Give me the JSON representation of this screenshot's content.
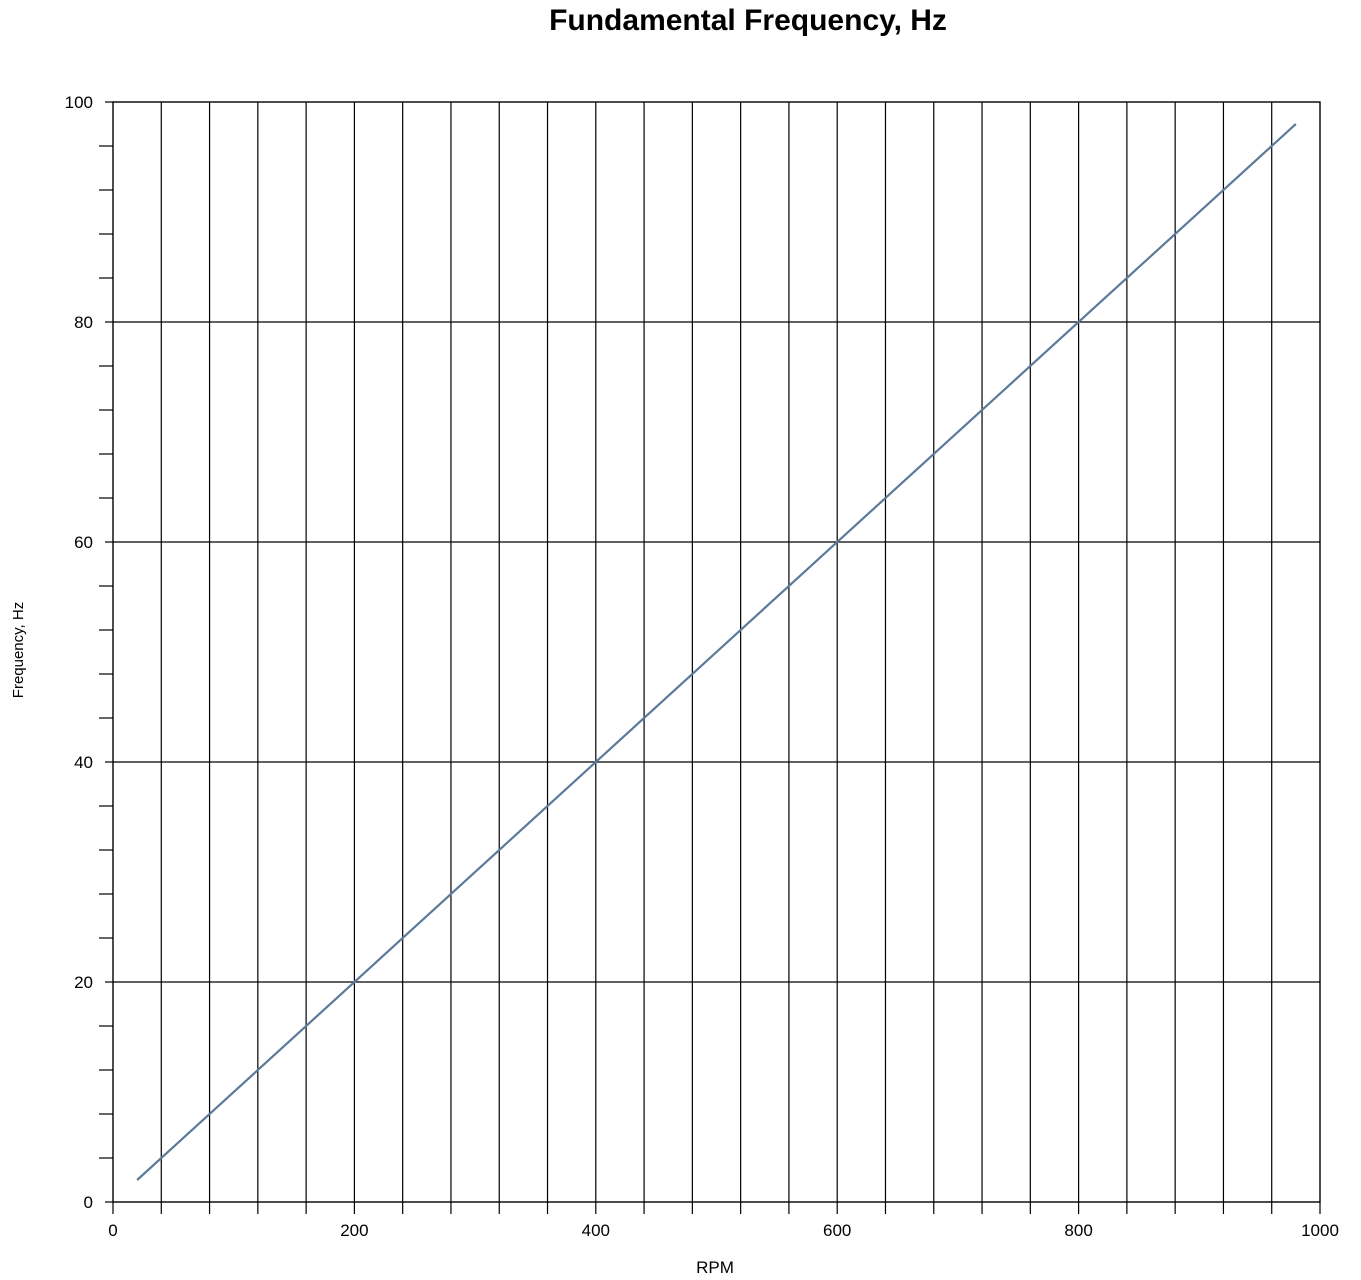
{
  "chart_data": {
    "type": "line",
    "title": "Fundamental Frequency, Hz",
    "xlabel": "RPM",
    "ylabel": "Frequency, Hz",
    "xlim": [
      0,
      1000
    ],
    "ylim": [
      0,
      100
    ],
    "x_ticks": [
      0,
      200,
      400,
      600,
      800,
      1000
    ],
    "x_tick_labels": [
      "0",
      "200",
      "400",
      "600",
      "800",
      "1000"
    ],
    "y_ticks": [
      0,
      20,
      40,
      60,
      80,
      100
    ],
    "y_tick_labels": [
      "0",
      "20",
      "40",
      "60",
      "80",
      "100"
    ],
    "x_minor_step": 40,
    "y_minor_step": 4,
    "grid": true,
    "series": [
      {
        "x": [
          20,
          980
        ],
        "y": [
          2,
          98
        ],
        "color": "#5b7a9a"
      }
    ]
  }
}
